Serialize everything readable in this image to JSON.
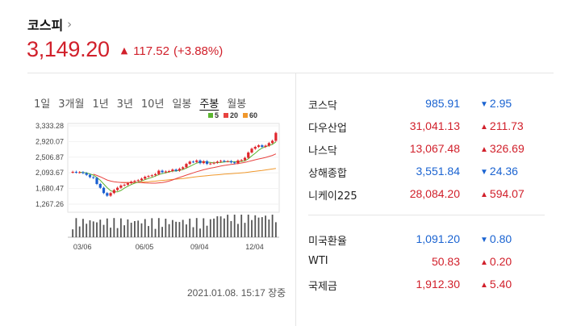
{
  "header": {
    "title": "코스피",
    "chevron": "›",
    "value": "3,149.20",
    "arrow": "▲",
    "change": "117.52",
    "rate": "(+3.88%)"
  },
  "period_tabs": [
    "1일",
    "3개월",
    "1년",
    "3년",
    "10년",
    "일봉",
    "주봉",
    "월봉"
  ],
  "active_tab": "주봉",
  "legend": [
    {
      "label": "5",
      "color": "#5cb531"
    },
    {
      "label": "20",
      "color": "#e8423f"
    },
    {
      "label": "60",
      "color": "#f0982c"
    }
  ],
  "timestamp": "2021.01.08. 15:17 장중",
  "markets": [
    {
      "name": "코스닥",
      "price": "985.91",
      "direction": "down",
      "arrow": "▼",
      "change": "2.95"
    },
    {
      "name": "다우산업",
      "price": "31,041.13",
      "direction": "up",
      "arrow": "▲",
      "change": "211.73"
    },
    {
      "name": "나스닥",
      "price": "13,067.48",
      "direction": "up",
      "arrow": "▲",
      "change": "326.69"
    },
    {
      "name": "상해종합",
      "price": "3,551.84",
      "direction": "down",
      "arrow": "▼",
      "change": "24.36"
    },
    {
      "name": "니케이225",
      "price": "28,084.20",
      "direction": "up",
      "arrow": "▲",
      "change": "594.07"
    },
    {
      "name": "미국환율",
      "price": "1,091.20",
      "direction": "down",
      "arrow": "▼",
      "change": "0.80"
    },
    {
      "name": "WTI",
      "price": "50.83",
      "direction": "up",
      "arrow": "▲",
      "change": "0.20"
    },
    {
      "name": "국제금",
      "price": "1,912.30",
      "direction": "up",
      "arrow": "▲",
      "change": "5.40"
    }
  ],
  "chart_data": {
    "type": "candlestick",
    "yticks": [
      "3,333.28",
      "2,920.07",
      "2,506.87",
      "2,093.67",
      "1,680.47",
      "1,267.26"
    ],
    "ytick_values": [
      3333.28,
      2920.07,
      2506.87,
      2093.67,
      1680.47,
      1267.26
    ],
    "xticks": [
      "03/06",
      "06/05",
      "09/04",
      "12/04"
    ],
    "ylim": [
      1200,
      3400
    ],
    "closes": [
      2120,
      2105,
      2110,
      2085,
      2040,
      1980,
      1960,
      1800,
      1700,
      1560,
      1490,
      1560,
      1640,
      1700,
      1760,
      1780,
      1820,
      1860,
      1880,
      1900,
      1940,
      1990,
      2010,
      2030,
      2060,
      2150,
      2110,
      2130,
      2140,
      2180,
      2150,
      2200,
      2240,
      2330,
      2390,
      2380,
      2420,
      2350,
      2400,
      2330,
      2340,
      2360,
      2390,
      2410,
      2400,
      2400,
      2370,
      2350,
      2420,
      2430,
      2490,
      2630,
      2730,
      2780,
      2820,
      2780,
      2810,
      2880,
      2940,
      3149
    ]
  }
}
